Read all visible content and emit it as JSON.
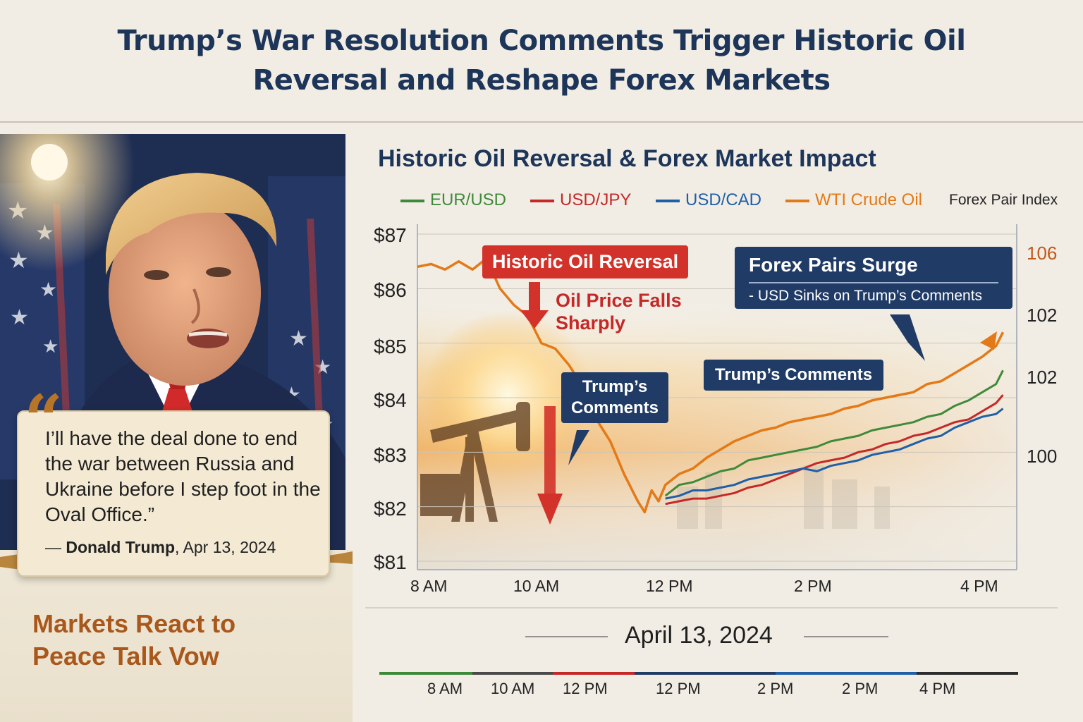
{
  "headline": {
    "line1": "Trump’s War Resolution Comments Trigger Historic Oil",
    "line2": "Reversal and Reshape Forex Markets"
  },
  "quote": {
    "text": "I’ll have the deal done to end the war between Russia and Ukraine before I step foot in the Oval Office.”",
    "author": "Donald Trump",
    "date": ", Apr 13, 2024"
  },
  "side_caption": {
    "line1": "Markets React to",
    "line2": "Peace Talk Vow"
  },
  "colors": {
    "eurusd": "#3f8a3a",
    "usdjpy": "#c62828",
    "usdcad": "#1f5fa8",
    "wti": "#e37a17",
    "navy": "#1f3b66",
    "red": "#d3322a"
  },
  "chart_data": {
    "type": "line",
    "title": "Historic Oil Reversal & Forex Market Impact",
    "legend": [
      "EUR/USD",
      "USD/JPY",
      "USD/CAD",
      "WTI Crude Oil"
    ],
    "right_axis_label": "Forex Pair Index",
    "y_ticks_left": [
      "$87",
      "$86",
      "$85",
      "$84",
      "$83",
      "$82",
      "$81"
    ],
    "y_ticks_right": [
      "106",
      "102",
      "102",
      "100"
    ],
    "x_ticks": [
      "8 AM",
      "10 AM",
      "12 PM",
      "2 PM",
      "4 PM"
    ],
    "ylim": [
      81,
      87
    ],
    "xlim": [
      7.8,
      16.5
    ],
    "date_label": "April 13, 2024",
    "series": [
      {
        "name": "WTI Crude Oil",
        "color_key": "wti",
        "axis": "left",
        "x": [
          7.8,
          8.0,
          8.2,
          8.4,
          8.6,
          8.8,
          9.0,
          9.2,
          9.4,
          9.6,
          9.8,
          10.0,
          10.2,
          10.4,
          10.6,
          10.8,
          11.0,
          11.1,
          11.2,
          11.3,
          11.4,
          11.6,
          11.8,
          12.0,
          12.2,
          12.4,
          12.6,
          12.8,
          13.0,
          13.2,
          13.4,
          13.6,
          13.8,
          14.0,
          14.2,
          14.4,
          14.6,
          14.8,
          15.0,
          15.2,
          15.4,
          15.6,
          15.8,
          16.0,
          16.2,
          16.3
        ],
        "y": [
          86.4,
          86.45,
          86.35,
          86.5,
          86.35,
          86.55,
          86.0,
          85.7,
          85.5,
          85.0,
          84.9,
          84.6,
          84.2,
          83.6,
          83.2,
          82.6,
          82.1,
          81.9,
          82.3,
          82.1,
          82.4,
          82.6,
          82.7,
          82.9,
          83.05,
          83.2,
          83.3,
          83.4,
          83.45,
          83.55,
          83.6,
          83.65,
          83.7,
          83.8,
          83.85,
          83.95,
          84.0,
          84.05,
          84.1,
          84.25,
          84.3,
          84.45,
          84.6,
          84.75,
          84.95,
          85.2
        ]
      },
      {
        "name": "EUR/USD",
        "color_key": "eurusd",
        "axis": "left",
        "x": [
          11.4,
          11.6,
          11.8,
          12.0,
          12.2,
          12.4,
          12.6,
          12.8,
          13.0,
          13.2,
          13.4,
          13.6,
          13.8,
          14.0,
          14.2,
          14.4,
          14.6,
          14.8,
          15.0,
          15.2,
          15.4,
          15.6,
          15.8,
          16.0,
          16.2,
          16.3
        ],
        "y": [
          82.2,
          82.4,
          82.45,
          82.55,
          82.65,
          82.7,
          82.85,
          82.9,
          82.95,
          83.0,
          83.05,
          83.1,
          83.2,
          83.25,
          83.3,
          83.4,
          83.45,
          83.5,
          83.55,
          83.65,
          83.7,
          83.85,
          83.95,
          84.1,
          84.25,
          84.5
        ]
      },
      {
        "name": "USD/JPY",
        "color_key": "usdjpy",
        "axis": "left",
        "x": [
          11.4,
          11.6,
          11.8,
          12.0,
          12.2,
          12.4,
          12.6,
          12.8,
          13.0,
          13.2,
          13.4,
          13.6,
          13.8,
          14.0,
          14.2,
          14.4,
          14.6,
          14.8,
          15.0,
          15.2,
          15.4,
          15.6,
          15.8,
          16.0,
          16.2,
          16.3
        ],
        "y": [
          82.05,
          82.1,
          82.15,
          82.15,
          82.2,
          82.25,
          82.35,
          82.4,
          82.5,
          82.6,
          82.7,
          82.8,
          82.85,
          82.9,
          83.0,
          83.05,
          83.15,
          83.2,
          83.3,
          83.35,
          83.45,
          83.55,
          83.6,
          83.75,
          83.9,
          84.05
        ]
      },
      {
        "name": "USD/CAD",
        "color_key": "usdcad",
        "axis": "left",
        "x": [
          11.4,
          11.6,
          11.8,
          12.0,
          12.2,
          12.4,
          12.6,
          12.8,
          13.0,
          13.2,
          13.4,
          13.6,
          13.8,
          14.0,
          14.2,
          14.4,
          14.6,
          14.8,
          15.0,
          15.2,
          15.4,
          15.6,
          15.8,
          16.0,
          16.2,
          16.3
        ],
        "y": [
          82.15,
          82.2,
          82.3,
          82.3,
          82.35,
          82.4,
          82.5,
          82.55,
          82.6,
          82.65,
          82.7,
          82.65,
          82.75,
          82.8,
          82.85,
          82.95,
          83.0,
          83.05,
          83.15,
          83.25,
          83.3,
          83.45,
          83.55,
          83.65,
          83.7,
          83.8
        ]
      }
    ],
    "annotations": {
      "oil_reversal": "Historic Oil Reversal",
      "oil_falls_line1": "Oil Price Falls",
      "oil_falls_line2": "Sharply",
      "comments_box_line1": "Trump’s",
      "comments_box_line2": "Comments",
      "forex_surge": "Forex Pairs Surge",
      "usd_sinks": "- USD Sinks on Trump’s Comments",
      "trumps_comments": "Trump’s Comments"
    },
    "bottom_timeline_ticks": [
      "8 AM",
      "10 AM",
      "12 PM",
      "12 PM",
      "2 PM",
      "2 PM",
      "4 PM"
    ]
  }
}
